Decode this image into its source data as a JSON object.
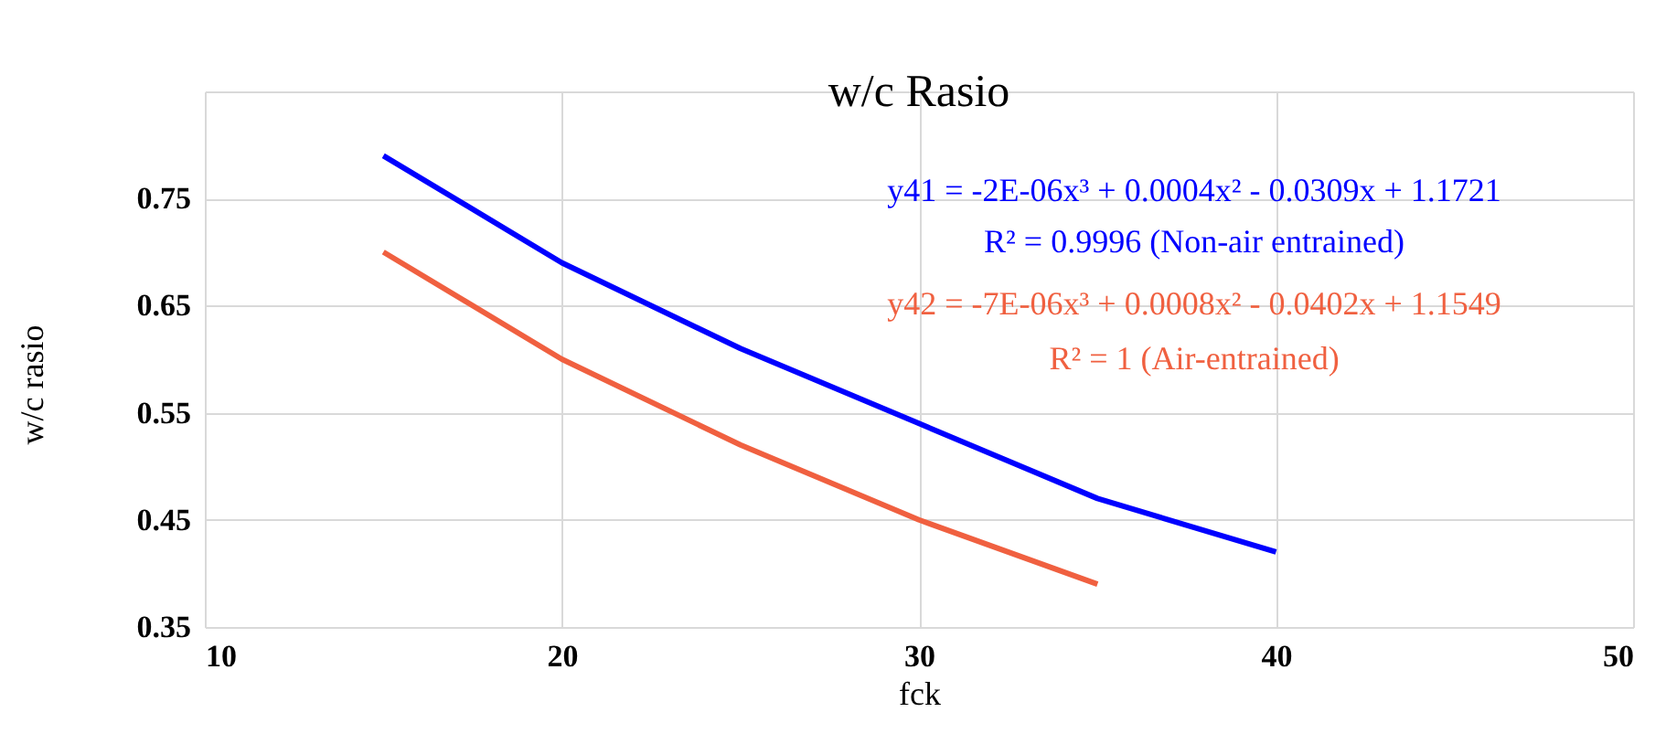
{
  "chart_data": {
    "type": "line",
    "title": "w/c Rasio",
    "xlabel": "fck",
    "ylabel": "w/c rasio",
    "annotations": [
      "y41 = -2E-06x³ + 0.0004x² - 0.0309x + 1.1721",
      "R² = 0.9996 (Non-air entrained)",
      "y42 = -7E-06x³ + 0.0008x² - 0.0402x + 1.1549",
      "R² = 1 (Air-entrained)"
    ],
    "series": [
      {
        "color": "#0000ff",
        "x": [
          15,
          20,
          25,
          30,
          35,
          40
        ],
        "values": [
          0.79,
          0.69,
          0.61,
          0.54,
          0.47,
          0.42
        ]
      },
      {
        "color": "#f06040",
        "x": [
          15,
          20,
          25,
          30,
          35
        ],
        "values": [
          0.7,
          0.6,
          0.52,
          0.45,
          0.39
        ]
      }
    ],
    "xlim": [
      10,
      50
    ],
    "xticks": [
      10,
      20,
      30,
      40,
      50
    ],
    "ylim": [
      0.35,
      0.85
    ],
    "yticks": [
      0.35,
      0.45,
      0.55,
      0.65,
      0.75,
      {
        "value": 0.85,
        "label": null
      }
    ],
    "grid": true,
    "marker": "none",
    "line_style": "solid"
  }
}
